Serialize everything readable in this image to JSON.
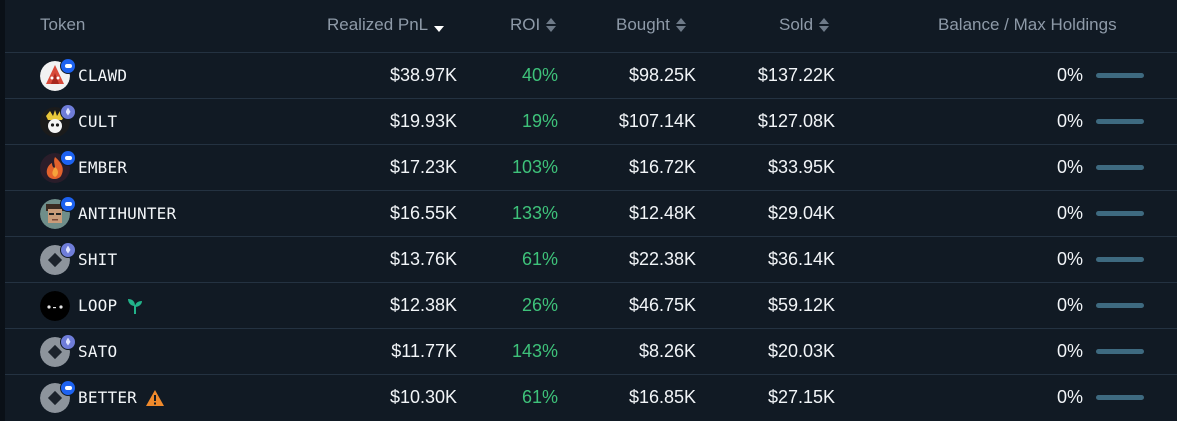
{
  "header": {
    "token": "Token",
    "realized_pnl": "Realized PnL",
    "roi": "ROI",
    "bought": "Bought",
    "sold": "Sold",
    "balance": "Balance / Max Holdings"
  },
  "colors": {
    "background": "#111a24",
    "roi_positive": "#3ec27a",
    "header_text": "#8e9aa8",
    "balance_bar": "#3e6a80"
  },
  "rows": [
    {
      "token": "CLAWD",
      "chain": "base-icon",
      "pnl": "$38.97K",
      "roi": "40%",
      "bought": "$98.25K",
      "sold": "$137.22K",
      "balance": "0%",
      "balance_fraction": 0
    },
    {
      "token": "CULT",
      "chain": "ethereum-icon",
      "pnl": "$19.93K",
      "roi": "19%",
      "bought": "$107.14K",
      "sold": "$127.08K",
      "balance": "0%",
      "balance_fraction": 0
    },
    {
      "token": "EMBER",
      "chain": "base-icon",
      "pnl": "$17.23K",
      "roi": "103%",
      "bought": "$16.72K",
      "sold": "$33.95K",
      "balance": "0%",
      "balance_fraction": 0
    },
    {
      "token": "ANTIHUNTER",
      "chain": "base-icon",
      "pnl": "$16.55K",
      "roi": "133%",
      "bought": "$12.48K",
      "sold": "$29.04K",
      "balance": "0%",
      "balance_fraction": 0
    },
    {
      "token": "SHIT",
      "chain": "ethereum-icon",
      "pnl": "$13.76K",
      "roi": "61%",
      "bought": "$22.38K",
      "sold": "$36.14K",
      "balance": "0%",
      "balance_fraction": 0
    },
    {
      "token": "LOOP",
      "chain": "",
      "extra_icon": "sprout-icon",
      "pnl": "$12.38K",
      "roi": "26%",
      "bought": "$46.75K",
      "sold": "$59.12K",
      "balance": "0%",
      "balance_fraction": 0
    },
    {
      "token": "SATO",
      "chain": "ethereum-icon",
      "pnl": "$11.77K",
      "roi": "143%",
      "bought": "$8.26K",
      "sold": "$20.03K",
      "balance": "0%",
      "balance_fraction": 0
    },
    {
      "token": "BETTER",
      "chain": "base-icon",
      "extra_icon": "warning-icon",
      "pnl": "$10.30K",
      "roi": "61%",
      "bought": "$16.85K",
      "sold": "$27.15K",
      "balance": "0%",
      "balance_fraction": 0
    }
  ]
}
